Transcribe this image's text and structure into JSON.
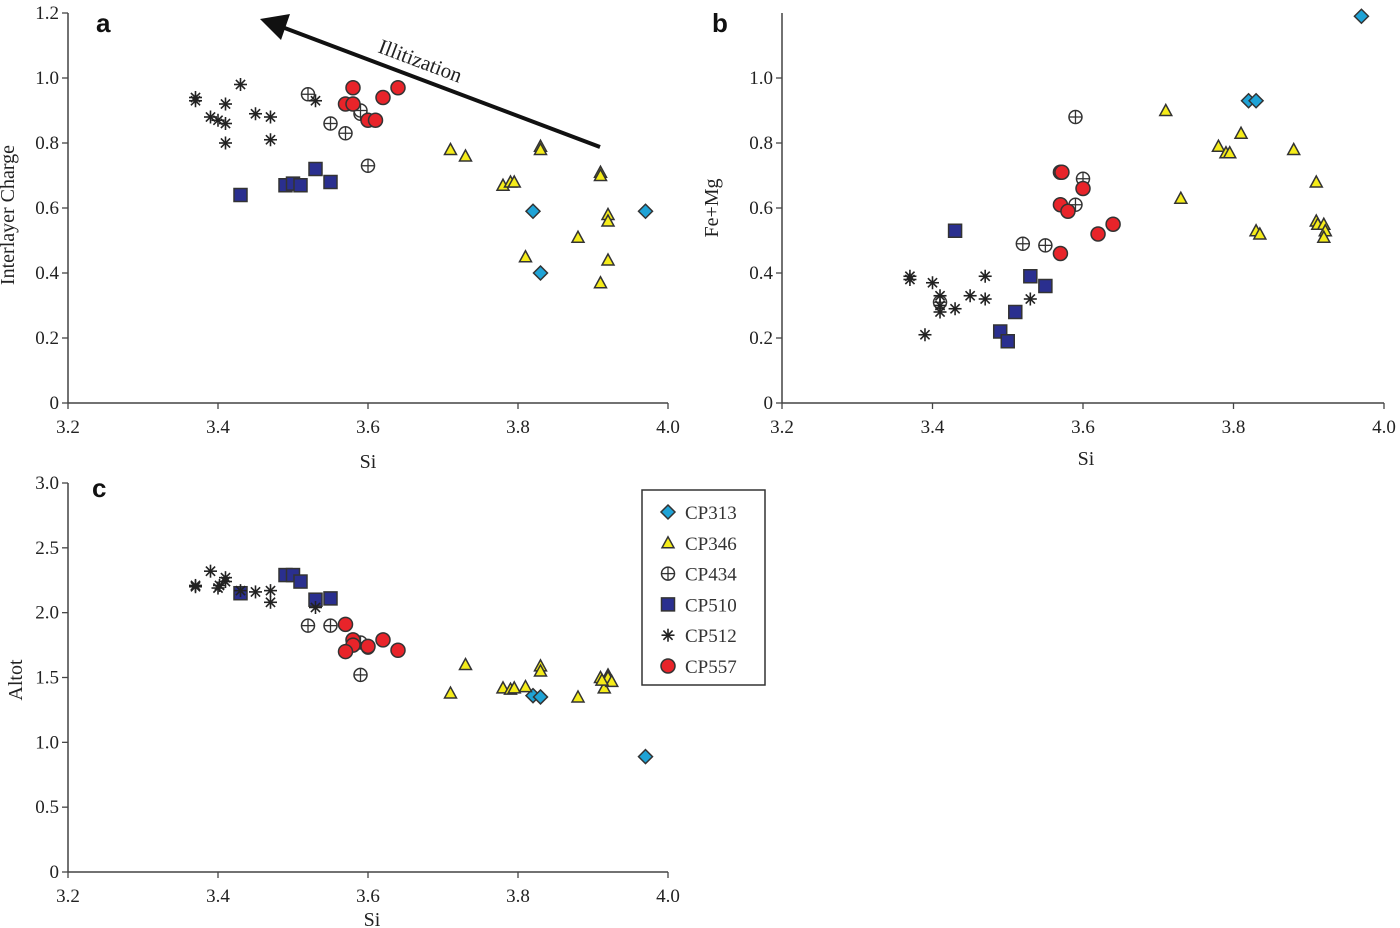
{
  "colors": {
    "CP313": "#1fa3d6",
    "CP346": "#f5ec1a",
    "CP434": "#ffffff",
    "CP510": "#2a2f8f",
    "CP512": "#222222",
    "CP557": "#e8242a",
    "axis": "#333333"
  },
  "markers": {
    "CP313": "diamond",
    "CP346": "triangle",
    "CP434": "circle-plus",
    "CP510": "square",
    "CP512": "asterisk",
    "CP557": "circle"
  },
  "legend": {
    "placement": "right of panel c",
    "entries": [
      "CP313",
      "CP346",
      "CP434",
      "CP510",
      "CP512",
      "CP557"
    ]
  },
  "annotation": {
    "text": "Illitization",
    "arrow": "points toward lower Si and higher interlayer charge"
  },
  "chart_data": [
    {
      "panel": "a",
      "type": "scatter",
      "xlabel": "Si",
      "ylabel": "Interlayer Charge",
      "xlim": [
        3.2,
        4.0
      ],
      "ylim": [
        0,
        1.2
      ],
      "xticks": [
        "3.2",
        "3.4",
        "3.6",
        "3.8",
        "4.0"
      ],
      "yticks": [
        "0",
        "0.2",
        "0.4",
        "0.6",
        "0.8",
        "1.0",
        "1.2"
      ],
      "grid": false,
      "series": [
        {
          "name": "CP313",
          "points": [
            [
              3.82,
              0.59
            ],
            [
              3.83,
              0.4
            ],
            [
              3.97,
              0.59
            ]
          ]
        },
        {
          "name": "CP346",
          "points": [
            [
              3.71,
              0.78
            ],
            [
              3.73,
              0.76
            ],
            [
              3.78,
              0.67
            ],
            [
              3.79,
              0.68
            ],
            [
              3.795,
              0.68
            ],
            [
              3.83,
              0.79
            ],
            [
              3.83,
              0.78
            ],
            [
              3.81,
              0.45
            ],
            [
              3.88,
              0.51
            ],
            [
              3.91,
              0.71
            ],
            [
              3.91,
              0.7
            ],
            [
              3.92,
              0.58
            ],
            [
              3.92,
              0.56
            ],
            [
              3.92,
              0.44
            ],
            [
              3.91,
              0.37
            ]
          ]
        },
        {
          "name": "CP434",
          "points": [
            [
              3.52,
              0.95
            ],
            [
              3.55,
              0.86
            ],
            [
              3.57,
              0.83
            ],
            [
              3.59,
              0.89
            ],
            [
              3.59,
              0.9
            ],
            [
              3.6,
              0.73
            ]
          ]
        },
        {
          "name": "CP510",
          "points": [
            [
              3.43,
              0.64
            ],
            [
              3.49,
              0.67
            ],
            [
              3.5,
              0.675
            ],
            [
              3.51,
              0.67
            ],
            [
              3.53,
              0.72
            ],
            [
              3.55,
              0.68
            ]
          ]
        },
        {
          "name": "CP512",
          "points": [
            [
              3.37,
              0.94
            ],
            [
              3.37,
              0.93
            ],
            [
              3.39,
              0.88
            ],
            [
              3.4,
              0.87
            ],
            [
              3.41,
              0.92
            ],
            [
              3.41,
              0.86
            ],
            [
              3.41,
              0.8
            ],
            [
              3.43,
              0.98
            ],
            [
              3.45,
              0.89
            ],
            [
              3.47,
              0.88
            ],
            [
              3.47,
              0.81
            ],
            [
              3.53,
              0.93
            ]
          ]
        },
        {
          "name": "CP557",
          "points": [
            [
              3.58,
              0.97
            ],
            [
              3.57,
              0.92
            ],
            [
              3.58,
              0.92
            ],
            [
              3.6,
              0.87
            ],
            [
              3.61,
              0.87
            ],
            [
              3.62,
              0.94
            ],
            [
              3.64,
              0.97
            ]
          ]
        }
      ]
    },
    {
      "panel": "b",
      "type": "scatter",
      "xlabel": "Si",
      "ylabel": "Fe+Mg",
      "xlim": [
        3.2,
        4.0
      ],
      "ylim": [
        0,
        1.2
      ],
      "xticks": [
        "3.2",
        "3.4",
        "3.6",
        "3.8",
        "4.0"
      ],
      "yticks": [
        "0",
        "0.2",
        "0.4",
        "0.6",
        "0.8",
        "1.0"
      ],
      "grid": false,
      "series": [
        {
          "name": "CP313",
          "points": [
            [
              3.82,
              0.93
            ],
            [
              3.83,
              0.93
            ],
            [
              3.97,
              1.19
            ]
          ]
        },
        {
          "name": "CP346",
          "points": [
            [
              3.71,
              0.9
            ],
            [
              3.73,
              0.63
            ],
            [
              3.78,
              0.79
            ],
            [
              3.79,
              0.77
            ],
            [
              3.795,
              0.77
            ],
            [
              3.81,
              0.83
            ],
            [
              3.83,
              0.53
            ],
            [
              3.835,
              0.52
            ],
            [
              3.88,
              0.78
            ],
            [
              3.91,
              0.68
            ],
            [
              3.91,
              0.56
            ],
            [
              3.912,
              0.55
            ],
            [
              3.92,
              0.55
            ],
            [
              3.922,
              0.53
            ],
            [
              3.92,
              0.51
            ]
          ]
        },
        {
          "name": "CP434",
          "points": [
            [
              3.59,
              0.88
            ],
            [
              3.6,
              0.69
            ],
            [
              3.59,
              0.61
            ],
            [
              3.52,
              0.49
            ],
            [
              3.55,
              0.485
            ],
            [
              3.41,
              0.31
            ]
          ]
        },
        {
          "name": "CP510",
          "points": [
            [
              3.43,
              0.53
            ],
            [
              3.53,
              0.39
            ],
            [
              3.55,
              0.36
            ],
            [
              3.51,
              0.28
            ],
            [
              3.49,
              0.22
            ],
            [
              3.5,
              0.19
            ]
          ]
        },
        {
          "name": "CP512",
          "points": [
            [
              3.37,
              0.39
            ],
            [
              3.37,
              0.38
            ],
            [
              3.4,
              0.37
            ],
            [
              3.41,
              0.33
            ],
            [
              3.41,
              0.3
            ],
            [
              3.41,
              0.28
            ],
            [
              3.43,
              0.29
            ],
            [
              3.45,
              0.33
            ],
            [
              3.47,
              0.39
            ],
            [
              3.47,
              0.32
            ],
            [
              3.53,
              0.32
            ],
            [
              3.39,
              0.21
            ]
          ]
        },
        {
          "name": "CP557",
          "points": [
            [
              3.57,
              0.71
            ],
            [
              3.572,
              0.71
            ],
            [
              3.6,
              0.66
            ],
            [
              3.57,
              0.61
            ],
            [
              3.58,
              0.59
            ],
            [
              3.64,
              0.55
            ],
            [
              3.62,
              0.52
            ],
            [
              3.57,
              0.46
            ]
          ]
        }
      ]
    },
    {
      "panel": "c",
      "type": "scatter",
      "xlabel": "Si",
      "ylabel": "Altot",
      "xlim": [
        3.2,
        4.0
      ],
      "ylim": [
        0,
        3.0
      ],
      "xticks": [
        "3.2",
        "3.4",
        "3.6",
        "3.8",
        "4.0"
      ],
      "yticks": [
        "0",
        "0.5",
        "1.0",
        "1.5",
        "2.0",
        "2.5",
        "3.0"
      ],
      "grid": false,
      "series": [
        {
          "name": "CP313",
          "points": [
            [
              3.82,
              1.36
            ],
            [
              3.83,
              1.35
            ],
            [
              3.97,
              0.89
            ]
          ]
        },
        {
          "name": "CP346",
          "points": [
            [
              3.71,
              1.38
            ],
            [
              3.73,
              1.6
            ],
            [
              3.78,
              1.42
            ],
            [
              3.79,
              1.41
            ],
            [
              3.795,
              1.42
            ],
            [
              3.81,
              1.43
            ],
            [
              3.83,
              1.59
            ],
            [
              3.83,
              1.55
            ],
            [
              3.88,
              1.35
            ],
            [
              3.91,
              1.5
            ],
            [
              3.915,
              1.42
            ],
            [
              3.92,
              1.52
            ],
            [
              3.92,
              1.5
            ],
            [
              3.925,
              1.47
            ],
            [
              3.912,
              1.48
            ]
          ]
        },
        {
          "name": "CP434",
          "points": [
            [
              3.52,
              1.9
            ],
            [
              3.55,
              1.9
            ],
            [
              3.59,
              1.52
            ],
            [
              3.6,
              1.73
            ],
            [
              3.59,
              1.77
            ],
            [
              3.57,
              1.7
            ]
          ]
        },
        {
          "name": "CP510",
          "points": [
            [
              3.43,
              2.15
            ],
            [
              3.49,
              2.29
            ],
            [
              3.5,
              2.29
            ],
            [
              3.51,
              2.24
            ],
            [
              3.53,
              2.1
            ],
            [
              3.55,
              2.11
            ]
          ]
        },
        {
          "name": "CP512",
          "points": [
            [
              3.37,
              2.21
            ],
            [
              3.37,
              2.2
            ],
            [
              3.39,
              2.32
            ],
            [
              3.4,
              2.19
            ],
            [
              3.41,
              2.24
            ],
            [
              3.41,
              2.27
            ],
            [
              3.43,
              2.17
            ],
            [
              3.45,
              2.16
            ],
            [
              3.47,
              2.17
            ],
            [
              3.47,
              2.08
            ],
            [
              3.53,
              2.04
            ],
            [
              3.402,
              2.21
            ]
          ]
        },
        {
          "name": "CP557",
          "points": [
            [
              3.57,
              1.91
            ],
            [
              3.58,
              1.79
            ],
            [
              3.58,
              1.75
            ],
            [
              3.6,
              1.74
            ],
            [
              3.62,
              1.79
            ],
            [
              3.64,
              1.71
            ],
            [
              3.57,
              1.7
            ]
          ]
        }
      ]
    }
  ]
}
